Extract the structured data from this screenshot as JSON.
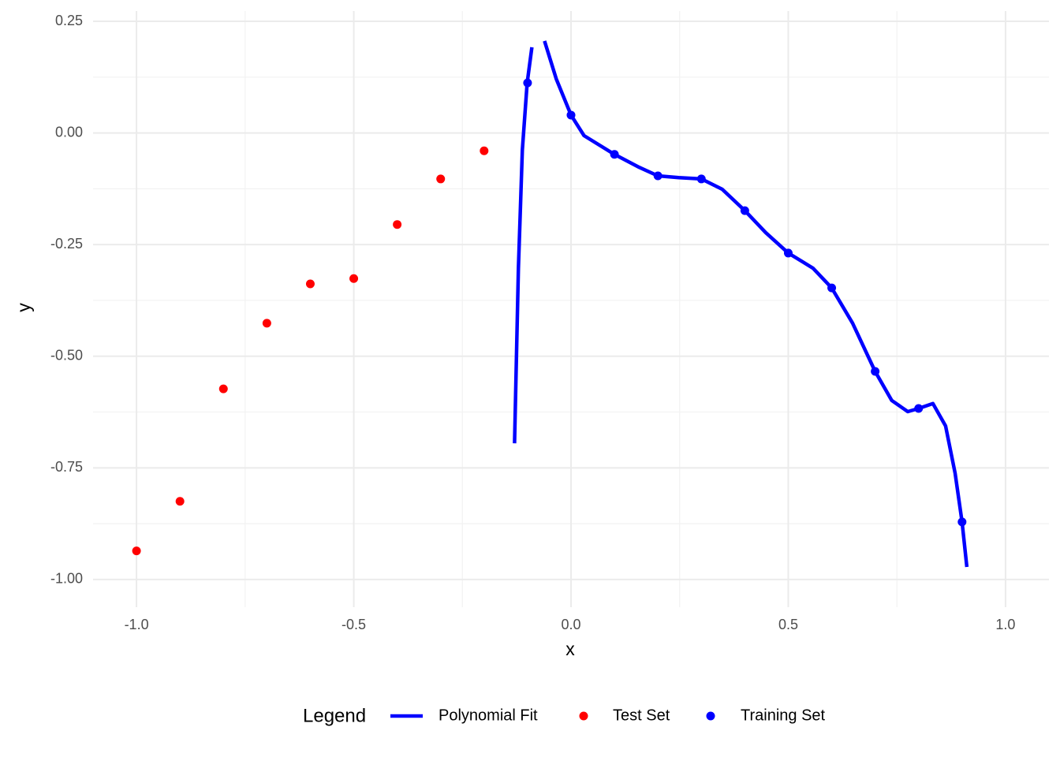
{
  "chart_data": {
    "type": "line",
    "xlabel": "x",
    "ylabel": "y",
    "legend_title": "Legend",
    "legend_position": "bottom",
    "xlim": [
      -1.1,
      1.1
    ],
    "ylim": [
      -1.062,
      0.273
    ],
    "xticks": [
      {
        "value": -1,
        "label": "-1.0"
      },
      {
        "value": -0.5,
        "label": "-0.5"
      },
      {
        "value": 0,
        "label": "0.0"
      },
      {
        "value": 0.5,
        "label": "0.5"
      },
      {
        "value": 1,
        "label": "1.0"
      }
    ],
    "yticks": [
      0.25,
      {
        "value": 0,
        "label": "0.00"
      },
      -0.25,
      {
        "value": -0.5,
        "label": "-0.50"
      },
      -0.75,
      {
        "value": -1,
        "label": "-1.00"
      }
    ],
    "x_minor_grid": [
      -0.75,
      -0.25,
      0.25,
      0.75
    ],
    "y_minor_grid": [
      0.125,
      -0.125,
      -0.375,
      -0.625,
      -0.875
    ],
    "grid": true,
    "series": [
      {
        "name": "Polynomial Fit",
        "type": "line",
        "color": "#0000ff",
        "x": [
          -0.13,
          -0.121,
          -0.112,
          -0.101,
          -0.09,
          null,
          -0.061,
          -0.034,
          0.0,
          0.03,
          0.1,
          0.157,
          0.2,
          0.248,
          0.3,
          0.348,
          0.4,
          0.448,
          0.5,
          0.557,
          0.6,
          0.648,
          0.7,
          0.738,
          0.775,
          0.8,
          0.833,
          0.862,
          0.884,
          0.9,
          0.911
        ],
        "values": [
          -0.695,
          -0.303,
          -0.038,
          0.112,
          0.192,
          null,
          0.206,
          0.121,
          0.04,
          -0.006,
          -0.048,
          -0.077,
          -0.096,
          -0.1,
          -0.103,
          -0.126,
          -0.174,
          -0.223,
          -0.269,
          -0.303,
          -0.347,
          -0.426,
          -0.534,
          -0.599,
          -0.624,
          -0.617,
          -0.606,
          -0.656,
          -0.762,
          -0.871,
          -0.972
        ]
      },
      {
        "name": "Test Set",
        "type": "scatter",
        "color": "#ff0000",
        "x": [
          -1.0,
          -0.9,
          -0.8,
          -0.7,
          -0.6,
          -0.5,
          -0.4,
          -0.3,
          -0.2
        ],
        "values": [
          -0.936,
          -0.825,
          -0.573,
          -0.426,
          -0.338,
          -0.326,
          -0.205,
          -0.103,
          -0.04
        ]
      },
      {
        "name": "Training Set",
        "type": "scatter",
        "color": "#0000ff",
        "x": [
          -0.1,
          0.0,
          0.1,
          0.2,
          0.3,
          0.4,
          0.5,
          0.6,
          0.7,
          0.8,
          0.9
        ],
        "values": [
          0.112,
          0.04,
          -0.048,
          -0.096,
          -0.103,
          -0.174,
          -0.269,
          -0.347,
          -0.534,
          -0.617,
          -0.871
        ]
      }
    ]
  }
}
